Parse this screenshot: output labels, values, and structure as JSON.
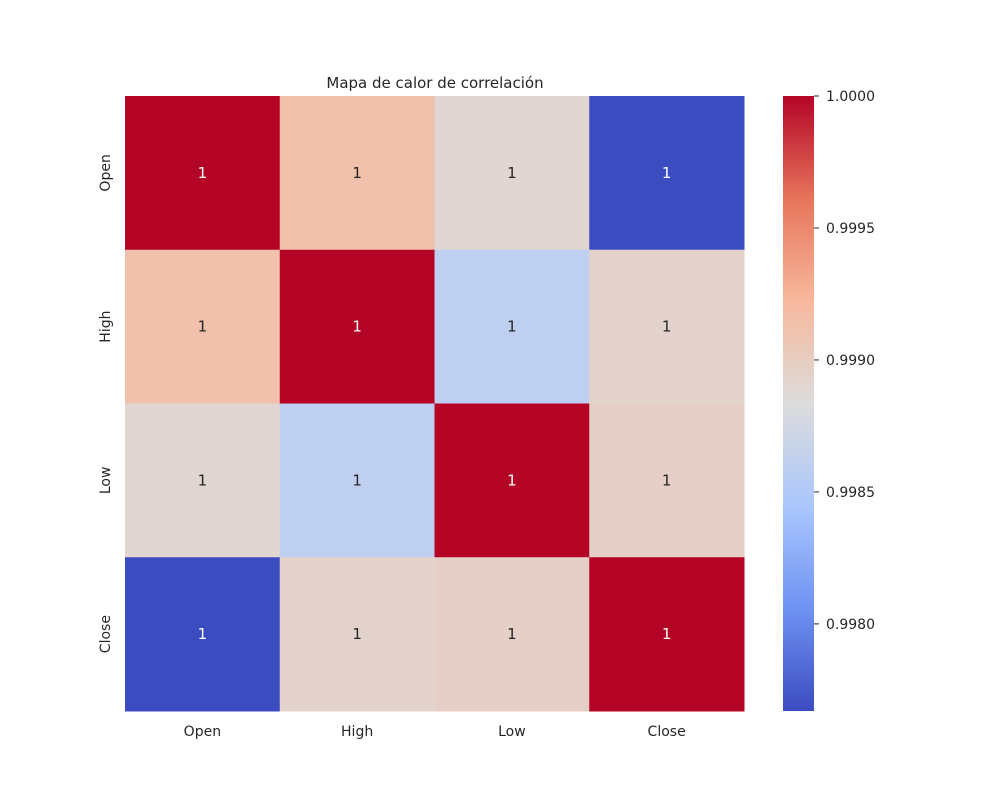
{
  "chart_data": {
    "type": "heatmap",
    "title": "Mapa de calor de correlación",
    "xlabel": "",
    "ylabel": "",
    "x_categories": [
      "Open",
      "High",
      "Low",
      "Close"
    ],
    "y_categories": [
      "Open",
      "High",
      "Low",
      "Close"
    ],
    "values": [
      [
        1.0,
        0.99913,
        0.9989,
        0.99767
      ],
      [
        0.99913,
        1.0,
        0.9986,
        0.99893
      ],
      [
        0.9989,
        0.9986,
        1.0,
        0.99897
      ],
      [
        0.99767,
        0.99893,
        0.99897,
        1.0
      ]
    ],
    "cell_labels": [
      [
        "1",
        "1",
        "1",
        "1"
      ],
      [
        "1",
        "1",
        "1",
        "1"
      ],
      [
        "1",
        "1",
        "1",
        "1"
      ],
      [
        "1",
        "1",
        "1",
        "1"
      ]
    ],
    "colorbar": {
      "colormap": "coolwarm",
      "range": [
        0.99767,
        1.0
      ],
      "ticks": [
        "0.9980",
        "0.9985",
        "0.9990",
        "0.9995",
        "1.0000"
      ],
      "tick_values": [
        0.998,
        0.9985,
        0.999,
        0.9995,
        1.0
      ],
      "stops": [
        "#3b4cc0",
        "#6f92f3",
        "#aac7fd",
        "#dddcdc",
        "#f7b89c",
        "#e7745b",
        "#b40426"
      ]
    },
    "grid": false,
    "legend": "colorbar-right"
  }
}
